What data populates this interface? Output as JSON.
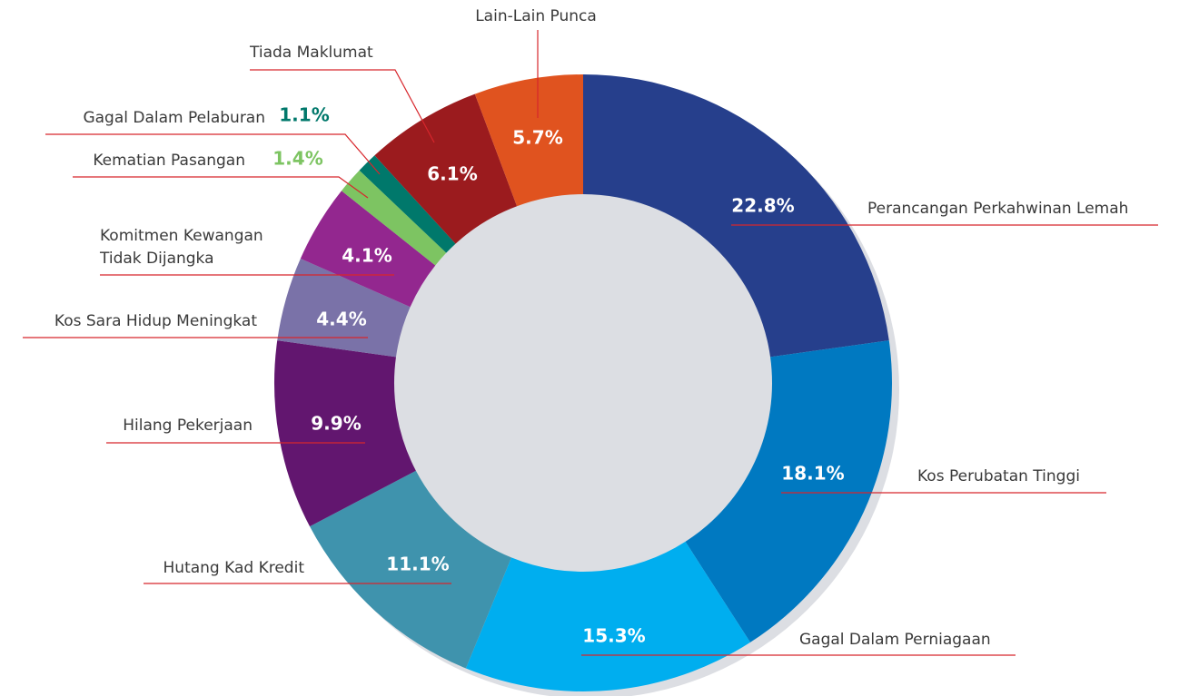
{
  "chart_data": {
    "type": "donut",
    "categories": [
      "Perancangan Perkahwinan Lemah",
      "Kos Perubatan Tinggi",
      "Gagal Dalam Perniagaan",
      "Hutang Kad Kredit",
      "Hilang Pekerjaan",
      "Kos Sara Hidup Meningkat",
      "Komitmen Kewangan Tidak Dijangka",
      "Kematian Pasangan",
      "Gagal Dalam Pelaburan",
      "Tiada Maklumat",
      "Lain-Lain Punca"
    ],
    "values": [
      22.8,
      18.1,
      15.3,
      11.1,
      9.9,
      4.4,
      4.1,
      1.4,
      1.1,
      6.1,
      5.7
    ],
    "value_labels": [
      "22.8%",
      "18.1%",
      "15.3%",
      "11.1%",
      "9.9%",
      "4.4%",
      "4.1%",
      "1.4%",
      "1.1%",
      "6.1%",
      "5.7%"
    ],
    "colors": [
      "#263f8c",
      "#0079c1",
      "#00aeef",
      "#3f93ad",
      "#62166f",
      "#7a72a8",
      "#93278f",
      "#7dc462",
      "#00786b",
      "#9b1b1e",
      "#e0531f"
    ]
  }
}
